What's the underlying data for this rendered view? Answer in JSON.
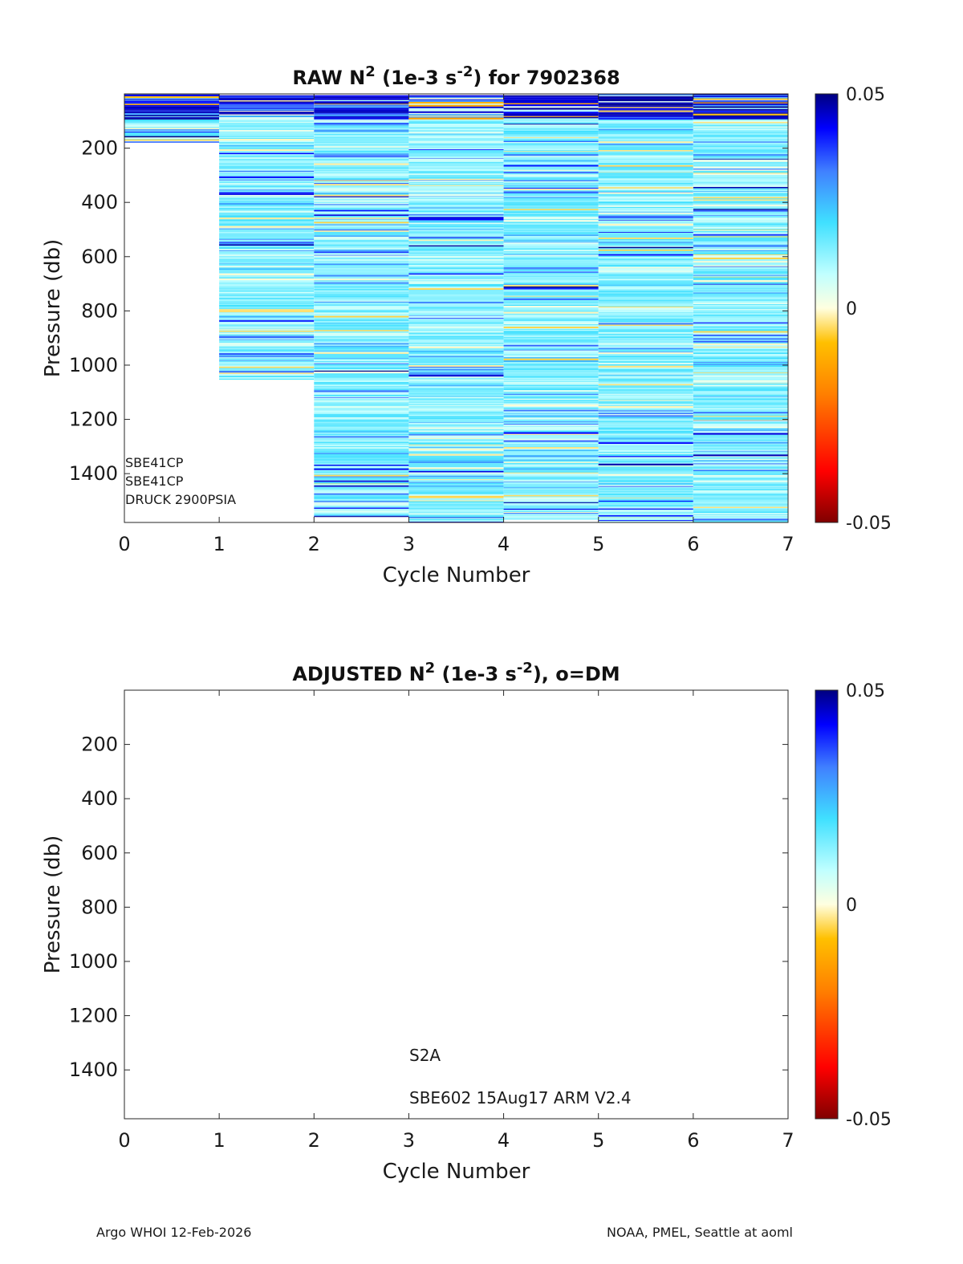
{
  "chart_data": [
    {
      "type": "heatmap",
      "title_main": "RAW N",
      "title_sup": "2",
      "title_mid": " (1e-3 s",
      "title_sup2": "-2",
      "title_end": ") for 7902368",
      "xlabel": "Cycle Number",
      "ylabel": "Pressure (db)",
      "xlim": [
        0,
        7
      ],
      "ylim": [
        1580,
        0
      ],
      "xticks": [
        "0",
        "1",
        "2",
        "3",
        "4",
        "5",
        "6",
        "7"
      ],
      "yticks": [
        "200",
        "400",
        "600",
        "800",
        "1000",
        "1200",
        "1400"
      ],
      "ytick_values": [
        200,
        400,
        600,
        800,
        1000,
        1200,
        1400
      ],
      "clim": [
        -0.05,
        0.05
      ],
      "colorbar_labels": [
        "0.05",
        "0",
        "-0.05"
      ],
      "profiles": [
        {
          "cycle": 1,
          "p_top": 0,
          "p_bottom": 180
        },
        {
          "cycle": 2,
          "p_top": 5,
          "p_bottom": 1055
        },
        {
          "cycle": 3,
          "p_top": 5,
          "p_bottom": 1560
        },
        {
          "cycle": 4,
          "p_top": 5,
          "p_bottom": 1580
        },
        {
          "cycle": 5,
          "p_top": 5,
          "p_bottom": 1570
        },
        {
          "cycle": 6,
          "p_top": 0,
          "p_bottom": 1580
        },
        {
          "cycle": 7,
          "p_top": 0,
          "p_bottom": 1580
        }
      ],
      "annotations": [
        "SBE41CP",
        "SBE41CP",
        "DRUCK 2900PSIA"
      ]
    },
    {
      "type": "heatmap",
      "title_main": "ADJUSTED N",
      "title_sup": "2",
      "title_mid": " (1e-3 s",
      "title_sup2": "-2",
      "title_end": "), o=DM",
      "xlabel": "Cycle Number",
      "ylabel": "Pressure (db)",
      "xlim": [
        0,
        7
      ],
      "ylim": [
        1580,
        0
      ],
      "xticks": [
        "0",
        "1",
        "2",
        "3",
        "4",
        "5",
        "6",
        "7"
      ],
      "yticks": [
        "200",
        "400",
        "600",
        "800",
        "1000",
        "1200",
        "1400"
      ],
      "ytick_values": [
        200,
        400,
        600,
        800,
        1000,
        1200,
        1400
      ],
      "clim": [
        -0.05,
        0.05
      ],
      "colorbar_labels": [
        "0.05",
        "0",
        "-0.05"
      ],
      "profiles": [],
      "annotations": [
        "S2A",
        "SBE602 15Aug17 ARM V2.4"
      ]
    }
  ],
  "footer": {
    "left": "Argo WHOI 12-Feb-2026",
    "right": "NOAA, PMEL, Seattle at aoml"
  }
}
